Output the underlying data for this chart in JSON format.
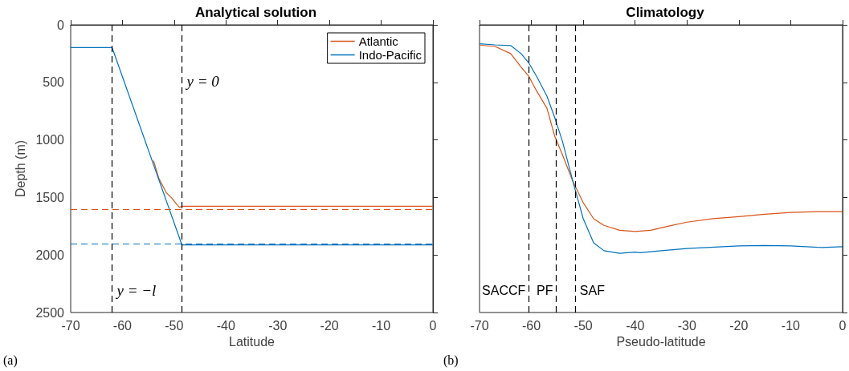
{
  "chart_data": [
    {
      "type": "line",
      "title": "Analytical solution",
      "xlabel": "Latitude",
      "ylabel": "Depth (m)",
      "xlim": [
        -70,
        0
      ],
      "xticks": [
        -70,
        -60,
        -50,
        -40,
        -30,
        -20,
        -10,
        0
      ],
      "ylim": [
        2500,
        0
      ],
      "yticks": [
        0,
        500,
        1000,
        1500,
        2000,
        2500
      ],
      "grid": false,
      "legend": "top right",
      "marker": "none",
      "series": [
        {
          "name": "Atlantic",
          "color": "#d95319",
          "x": [
            -54,
            -53,
            -51.5,
            -50.5,
            -49.5,
            -49,
            -48.5,
            0
          ],
          "values": [
            1180,
            1330,
            1460,
            1503,
            1561,
            1585,
            1577,
            1577
          ]
        },
        {
          "name": "Indo-Pacific",
          "color": "#0072bd",
          "x": [
            -70,
            -62,
            -48.5,
            0
          ],
          "values": [
            197,
            197,
            1913,
            1913
          ]
        }
      ],
      "ref_lines": [
        {
          "axis": "x",
          "value": -62,
          "color": "#000000",
          "line_style": "dashed"
        },
        {
          "axis": "x",
          "value": -48.5,
          "color": "#000000",
          "line_style": "dashed"
        },
        {
          "axis": "y",
          "value": 1600,
          "color": "#d95319",
          "line_style": "dashed"
        },
        {
          "axis": "y",
          "value": 1900,
          "color": "#0072bd",
          "line_style": "dashed"
        }
      ],
      "annotations": [
        "y = −l",
        "y = 0",
        "(a)"
      ]
    },
    {
      "type": "line",
      "title": "Climatology",
      "xlabel": "Pseudo-latitude",
      "xlim": [
        -70,
        0
      ],
      "xticks": [
        -70,
        -60,
        -50,
        -40,
        -30,
        -20,
        -10,
        0
      ],
      "ylim": [
        2500,
        0
      ],
      "yticks": [
        0,
        500,
        1000,
        1500,
        2000,
        2500
      ],
      "tick_labels": "x",
      "grid": false,
      "marker": "none",
      "series": [
        {
          "color": "#d95319",
          "x": [
            -70,
            -67,
            -64,
            -62,
            -60.5,
            -59,
            -57,
            -55.5,
            -54,
            -52,
            -50,
            -48,
            -46,
            -43,
            -40,
            -37,
            -33,
            -30,
            -25,
            -20,
            -15,
            -10,
            -5,
            0
          ],
          "values": [
            176,
            188,
            250,
            366,
            447,
            574,
            725,
            968,
            1130,
            1361,
            1546,
            1685,
            1743,
            1785,
            1796,
            1785,
            1743,
            1715,
            1685,
            1667,
            1646,
            1630,
            1623,
            1623
          ]
        },
        {
          "color": "#0072bd",
          "x": [
            -70,
            -67,
            -64,
            -62,
            -60.5,
            -59,
            -57,
            -55.5,
            -54,
            -52,
            -50,
            -48,
            -46,
            -43,
            -40,
            -39,
            -35,
            -30,
            -20,
            -15,
            -10,
            -4,
            0
          ],
          "values": [
            164,
            174,
            180,
            250,
            331,
            447,
            620,
            806,
            1014,
            1361,
            1685,
            1894,
            1963,
            1986,
            1975,
            1980,
            1963,
            1944,
            1921,
            1917,
            1921,
            1935,
            1928
          ]
        }
      ],
      "ref_lines": [
        {
          "axis": "x",
          "value": -60.5,
          "color": "#000000",
          "line_style": "dashed",
          "label": "SACCF"
        },
        {
          "axis": "x",
          "value": -55.2,
          "color": "#000000",
          "line_style": "dashed",
          "label": "PF"
        },
        {
          "axis": "x",
          "value": -51.6,
          "color": "#000000",
          "line_style": "dashed",
          "label": "SAF"
        }
      ],
      "annotations": [
        "(b)"
      ]
    }
  ]
}
